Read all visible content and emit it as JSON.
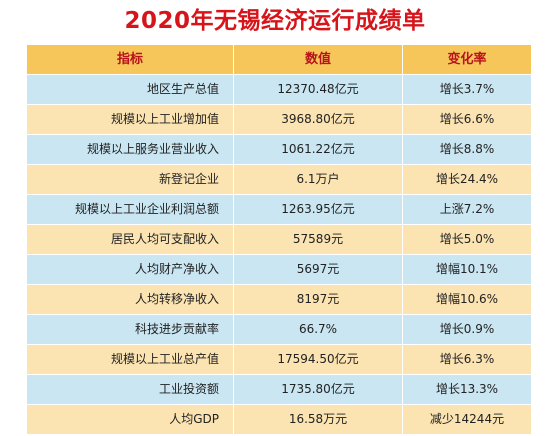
{
  "title": "2020年无锡经济运行成绩单",
  "table": {
    "headers": [
      "指标",
      "数值",
      "变化率"
    ],
    "rows": [
      [
        "地区生产总值",
        "12370.48亿元",
        "增长3.7%"
      ],
      [
        "规模以上工业增加值",
        "3968.80亿元",
        "增长6.6%"
      ],
      [
        "规模以上服务业营业收入",
        "1061.22亿元",
        "增长8.8%"
      ],
      [
        "新登记企业",
        "6.1万户",
        "增长24.4%"
      ],
      [
        "规模以上工业企业利润总额",
        "1263.95亿元",
        "上涨7.2%"
      ],
      [
        "居民人均可支配收入",
        "57589元",
        "增长5.0%"
      ],
      [
        "人均财产净收入",
        "5697元",
        "增幅10.1%"
      ],
      [
        "人均转移净收入",
        "8197元",
        "增幅10.6%"
      ],
      [
        "科技进步贡献率",
        "66.7%",
        "增长0.9%"
      ],
      [
        "规模以上工业总产值",
        "17594.50亿元",
        "增长6.3%"
      ],
      [
        "工业投资额",
        "1735.80亿元",
        "增长13.3%"
      ],
      [
        "人均GDP",
        "16.58万元",
        "减少14244元"
      ]
    ]
  },
  "colors": {
    "title": "#d7141a",
    "header_bg": "#f7c65b",
    "header_text": "#b8121a",
    "row_blue": "#c9e6f2",
    "row_cream": "#fbe3b2"
  }
}
